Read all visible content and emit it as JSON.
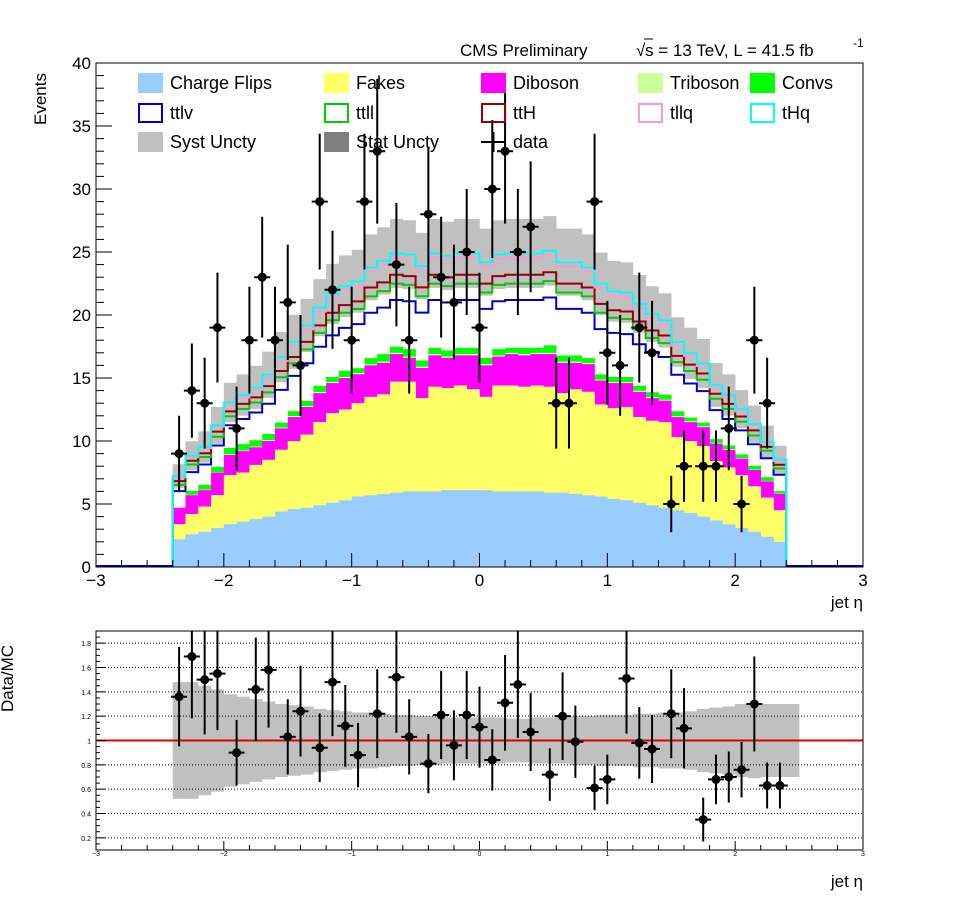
{
  "header": {
    "cms_label": "CMS Preliminary",
    "sqrt_symbol": "√",
    "energy_lumi": "s = 13 TeV, L = 41.5 fb",
    "lumi_exponent": "-1"
  },
  "colors": {
    "charge_flips": "#99ccff",
    "fakes": "#ffff66",
    "diboson": "#ff00ff",
    "triboson": "#ccff99",
    "convs": "#00ff00",
    "ttlv": "#0000cc",
    "ttll": "#00cc00",
    "ttH": "#990000",
    "tllq": "#ff99cc",
    "tHq": "#00ffff",
    "syst": "#c0c0c0",
    "stat": "#808080",
    "data": "#000000",
    "ratio_line": "#dd0000"
  },
  "legend": [
    {
      "label": "Charge Flips",
      "style": "fill",
      "color": "#99ccff"
    },
    {
      "label": "Fakes",
      "style": "fill",
      "color": "#ffff66"
    },
    {
      "label": "Diboson",
      "style": "fill",
      "color": "#ff00ff"
    },
    {
      "label": "Triboson",
      "style": "fill",
      "color": "#ccff99"
    },
    {
      "label": "Convs",
      "style": "fill",
      "color": "#00ff00"
    },
    {
      "label": "ttlv",
      "style": "box",
      "color": "#0000cc"
    },
    {
      "label": "ttll",
      "style": "box",
      "color": "#00cc00"
    },
    {
      "label": "ttH",
      "style": "box",
      "color": "#990000"
    },
    {
      "label": "tllq",
      "style": "box",
      "color": "#ff99cc"
    },
    {
      "label": "tHq",
      "style": "box",
      "color": "#00ffff"
    },
    {
      "label": "Syst Uncty",
      "style": "fill",
      "color": "#c0c0c0"
    },
    {
      "label": "Stat Uncty",
      "style": "fill",
      "color": "#808080"
    },
    {
      "label": "data",
      "style": "marker",
      "color": "#000000"
    }
  ],
  "chart_data": [
    {
      "type": "bar",
      "subtype": "stacked-histogram",
      "ylabel": "Events",
      "xlabel": "jet  η",
      "xlim": [
        -3,
        3
      ],
      "ylim": [
        0,
        40
      ],
      "xticks": [
        "−3",
        "−2",
        "−1",
        "0",
        "1",
        "2",
        "3"
      ],
      "yticks": [
        "0",
        "5",
        "10",
        "15",
        "20",
        "25",
        "30",
        "35",
        "40"
      ],
      "bin_edges": [
        -2.4,
        -2.3,
        -2.2,
        -2.1,
        -2.0,
        -1.9,
        -1.8,
        -1.7,
        -1.6,
        -1.5,
        -1.4,
        -1.3,
        -1.2,
        -1.1,
        -1.0,
        -0.9,
        -0.8,
        -0.7,
        -0.6,
        -0.5,
        -0.4,
        -0.3,
        -0.2,
        -0.1,
        0.0,
        0.1,
        0.2,
        0.3,
        0.4,
        0.5,
        0.6,
        0.7,
        0.8,
        0.9,
        1.0,
        1.1,
        1.2,
        1.3,
        1.4,
        1.5,
        1.6,
        1.7,
        1.8,
        1.9,
        2.0,
        2.1,
        2.2,
        2.3,
        2.4
      ],
      "series": [
        {
          "name": "Charge Flips",
          "values": [
            2.2,
            2.6,
            2.8,
            3.1,
            3.4,
            3.6,
            3.8,
            4.0,
            4.4,
            4.6,
            4.7,
            4.9,
            5.1,
            5.3,
            5.6,
            5.7,
            5.8,
            5.9,
            6.0,
            6.0,
            6.0,
            6.1,
            6.1,
            6.1,
            6.1,
            6.0,
            6.0,
            6.0,
            6.0,
            5.9,
            5.9,
            5.8,
            5.7,
            5.6,
            5.4,
            5.3,
            5.1,
            4.9,
            4.7,
            4.5,
            4.3,
            4.0,
            3.7,
            3.4,
            3.1,
            2.8,
            2.4,
            2.0
          ]
        },
        {
          "name": "Fakes",
          "values": [
            1.2,
            1.6,
            2.0,
            2.6,
            3.9,
            3.9,
            4.3,
            4.5,
            4.9,
            5.4,
            5.8,
            6.6,
            7.1,
            7.2,
            7.4,
            7.8,
            7.9,
            8.8,
            8.7,
            7.4,
            8.3,
            8.1,
            8.3,
            8.0,
            7.4,
            8.4,
            8.4,
            8.3,
            8.4,
            8.4,
            7.9,
            8.3,
            8.2,
            7.3,
            7.2,
            7.4,
            6.8,
            6.7,
            6.8,
            5.8,
            5.7,
            5.6,
            4.7,
            4.5,
            4.2,
            3.6,
            3.1,
            2.5
          ]
        },
        {
          "name": "Diboson",
          "values": [
            1.3,
            1.5,
            1.3,
            1.8,
            1.6,
            1.7,
            1.4,
            1.5,
            1.7,
            1.9,
            2.2,
            2.3,
            2.4,
            2.5,
            2.3,
            2.5,
            2.5,
            2.2,
            1.9,
            2.4,
            2.5,
            2.4,
            2.4,
            2.7,
            2.5,
            2.3,
            2.5,
            2.5,
            2.5,
            2.6,
            2.4,
            2.1,
            2.2,
            1.9,
            2.0,
            1.9,
            2.0,
            1.8,
            1.7,
            1.6,
            1.5,
            1.5,
            1.4,
            1.4,
            1.3,
            1.3,
            1.3,
            1.3
          ]
        },
        {
          "name": "Triboson",
          "values": [
            0.02,
            0.03,
            0.03,
            0.04,
            0.05,
            0.05,
            0.06,
            0.06,
            0.06,
            0.07,
            0.07,
            0.08,
            0.08,
            0.08,
            0.08,
            0.08,
            0.09,
            0.09,
            0.09,
            0.09,
            0.09,
            0.09,
            0.09,
            0.09,
            0.09,
            0.09,
            0.09,
            0.09,
            0.09,
            0.09,
            0.09,
            0.09,
            0.08,
            0.08,
            0.08,
            0.08,
            0.08,
            0.07,
            0.07,
            0.06,
            0.06,
            0.06,
            0.05,
            0.05,
            0.04,
            0.04,
            0.03,
            0.02
          ]
        },
        {
          "name": "Convs",
          "values": [
            0.0,
            0.3,
            0.4,
            0.4,
            0.5,
            0.5,
            0.5,
            0.5,
            0.4,
            0.4,
            0.4,
            0.5,
            0.4,
            0.5,
            0.4,
            0.5,
            0.6,
            0.5,
            0.6,
            0.5,
            0.5,
            0.5,
            0.5,
            0.5,
            0.5,
            0.5,
            0.4,
            0.5,
            0.4,
            0.6,
            0.5,
            0.5,
            0.4,
            0.4,
            0.4,
            0.4,
            0.4,
            0.4,
            0.4,
            0.4,
            0.3,
            0.3,
            0.3,
            0.3,
            0.3,
            0.3,
            0.3,
            0.2
          ]
        },
        {
          "name": "ttlv",
          "values": [
            1.3,
            1.5,
            1.6,
            1.7,
            1.8,
            2.0,
            2.2,
            2.4,
            2.6,
            2.8,
            3.0,
            3.1,
            3.3,
            3.4,
            3.5,
            3.6,
            3.7,
            3.7,
            3.8,
            3.8,
            3.8,
            3.8,
            3.8,
            3.8,
            3.9,
            3.8,
            3.8,
            3.8,
            3.8,
            3.8,
            3.7,
            3.7,
            3.6,
            3.6,
            3.5,
            3.4,
            3.3,
            3.2,
            3.0,
            2.9,
            2.7,
            2.5,
            2.3,
            2.1,
            1.9,
            1.7,
            1.5,
            1.3
          ]
        },
        {
          "name": "ttll",
          "values": [
            0.5,
            0.6,
            0.6,
            0.7,
            0.7,
            0.8,
            0.8,
            0.9,
            1.0,
            1.0,
            1.1,
            1.1,
            1.2,
            1.2,
            1.2,
            1.3,
            1.3,
            1.3,
            1.3,
            1.3,
            1.3,
            1.3,
            1.3,
            1.3,
            1.3,
            1.3,
            1.3,
            1.3,
            1.3,
            1.3,
            1.3,
            1.3,
            1.3,
            1.3,
            1.2,
            1.2,
            1.2,
            1.1,
            1.1,
            1.0,
            1.0,
            0.9,
            0.9,
            0.8,
            0.7,
            0.7,
            0.6,
            0.5
          ]
        },
        {
          "name": "ttH",
          "values": [
            0.3,
            0.3,
            0.3,
            0.4,
            0.4,
            0.4,
            0.4,
            0.5,
            0.5,
            0.5,
            0.6,
            0.6,
            0.6,
            0.6,
            0.6,
            0.7,
            0.7,
            0.7,
            0.7,
            0.7,
            0.7,
            0.7,
            0.7,
            0.7,
            0.7,
            0.7,
            0.7,
            0.7,
            0.7,
            0.7,
            0.7,
            0.7,
            0.7,
            0.7,
            0.6,
            0.6,
            0.6,
            0.6,
            0.6,
            0.5,
            0.5,
            0.5,
            0.4,
            0.4,
            0.4,
            0.4,
            0.3,
            0.3
          ]
        },
        {
          "name": "tllq",
          "values": [
            0.3,
            0.3,
            0.4,
            0.4,
            0.5,
            0.5,
            0.6,
            0.7,
            0.8,
            0.9,
            1.0,
            1.1,
            1.2,
            1.2,
            1.3,
            1.3,
            1.4,
            1.4,
            1.4,
            1.4,
            1.4,
            1.4,
            1.4,
            1.4,
            1.4,
            1.4,
            1.4,
            1.4,
            1.4,
            1.4,
            1.4,
            1.4,
            1.3,
            1.3,
            1.2,
            1.2,
            1.1,
            1.0,
            0.9,
            0.8,
            0.7,
            0.6,
            0.5,
            0.5,
            0.4,
            0.4,
            0.3,
            0.3
          ]
        },
        {
          "name": "tHq",
          "values": [
            0.1,
            0.1,
            0.1,
            0.1,
            0.2,
            0.2,
            0.2,
            0.2,
            0.3,
            0.3,
            0.3,
            0.3,
            0.3,
            0.3,
            0.3,
            0.3,
            0.3,
            0.3,
            0.3,
            0.3,
            0.3,
            0.3,
            0.3,
            0.3,
            0.3,
            0.3,
            0.3,
            0.3,
            0.3,
            0.3,
            0.3,
            0.3,
            0.3,
            0.3,
            0.3,
            0.3,
            0.3,
            0.3,
            0.3,
            0.3,
            0.2,
            0.2,
            0.2,
            0.2,
            0.2,
            0.1,
            0.1,
            0.1
          ]
        }
      ],
      "syst_band_rel": [
        0.13,
        0.13,
        0.13,
        0.13,
        0.12,
        0.12,
        0.12,
        0.12,
        0.12,
        0.12,
        0.11,
        0.11,
        0.11,
        0.11,
        0.11,
        0.11,
        0.11,
        0.11,
        0.11,
        0.11,
        0.11,
        0.11,
        0.11,
        0.11,
        0.11,
        0.11,
        0.11,
        0.11,
        0.11,
        0.11,
        0.11,
        0.11,
        0.11,
        0.11,
        0.11,
        0.11,
        0.11,
        0.11,
        0.11,
        0.11,
        0.12,
        0.12,
        0.12,
        0.12,
        0.12,
        0.13,
        0.13,
        0.13
      ],
      "data_points": {
        "name": "data",
        "x": [
          -2.35,
          -2.25,
          -2.15,
          -2.05,
          -1.9,
          -1.8,
          -1.7,
          -1.6,
          -1.5,
          -1.4,
          -1.25,
          -1.15,
          -1.0,
          -0.9,
          -0.8,
          -0.65,
          -0.55,
          -0.4,
          -0.3,
          -0.2,
          -0.1,
          0.0,
          0.1,
          0.2,
          0.3,
          0.4,
          0.6,
          0.7,
          0.9,
          1.0,
          1.1,
          1.25,
          1.35,
          1.5,
          1.6,
          1.75,
          1.85,
          1.95,
          2.05,
          2.15,
          2.25
        ],
        "y": [
          9,
          14,
          13,
          19,
          11,
          18,
          23,
          18,
          21,
          16,
          29,
          22,
          18,
          29,
          33,
          24,
          18,
          28,
          23,
          21,
          25,
          19,
          30,
          33,
          25,
          27,
          13,
          13,
          29,
          17,
          16,
          19,
          17,
          5,
          8,
          8,
          8,
          11,
          5,
          18,
          13
        ]
      }
    },
    {
      "type": "scatter",
      "subtype": "ratio",
      "ylabel": "Data/MC",
      "xlabel": "jet  η",
      "xlim": [
        -3,
        3
      ],
      "ylim": [
        0.1,
        1.9
      ],
      "xticks": [
        "−3",
        "−2",
        "−1",
        "0",
        "1",
        "2",
        "3"
      ],
      "yticks": [
        "0.2",
        "0.4",
        "0.6",
        "0.8",
        "1",
        "1.2",
        "1.4",
        "1.6",
        "1.8"
      ],
      "reference_line": 1,
      "band_edges": [
        -2.4,
        -2.3,
        -2.2,
        -2.1,
        -2.0,
        -1.9,
        -1.8,
        -1.7,
        -1.6,
        -1.5,
        -1.4,
        -1.3,
        -1.2,
        -1.1,
        -1.0,
        -0.9,
        -0.8,
        -0.7,
        -0.6,
        -0.5,
        -0.4,
        -0.3,
        -0.2,
        -0.1,
        0.0,
        0.1,
        0.2,
        0.3,
        0.4,
        0.5,
        0.6,
        0.7,
        0.8,
        0.9,
        1.0,
        1.1,
        1.2,
        1.3,
        1.4,
        1.5,
        1.6,
        1.7,
        1.8,
        1.9,
        2.0,
        2.1,
        2.2,
        2.3,
        2.4,
        2.5
      ],
      "band_low": [
        0.52,
        0.52,
        0.55,
        0.58,
        0.62,
        0.64,
        0.66,
        0.68,
        0.7,
        0.71,
        0.72,
        0.74,
        0.75,
        0.76,
        0.77,
        0.77,
        0.78,
        0.79,
        0.79,
        0.8,
        0.8,
        0.81,
        0.81,
        0.81,
        0.81,
        0.81,
        0.82,
        0.82,
        0.81,
        0.81,
        0.81,
        0.8,
        0.8,
        0.79,
        0.79,
        0.79,
        0.78,
        0.78,
        0.77,
        0.77,
        0.76,
        0.74,
        0.73,
        0.72,
        0.7,
        0.69,
        0.7,
        0.7,
        0.7
      ],
      "band_high": [
        1.48,
        1.48,
        1.45,
        1.42,
        1.38,
        1.36,
        1.34,
        1.32,
        1.3,
        1.29,
        1.28,
        1.26,
        1.25,
        1.24,
        1.23,
        1.23,
        1.22,
        1.21,
        1.21,
        1.2,
        1.2,
        1.19,
        1.19,
        1.19,
        1.19,
        1.19,
        1.18,
        1.18,
        1.19,
        1.19,
        1.19,
        1.2,
        1.2,
        1.21,
        1.21,
        1.21,
        1.22,
        1.22,
        1.23,
        1.23,
        1.24,
        1.26,
        1.27,
        1.28,
        1.3,
        1.31,
        1.3,
        1.3,
        1.3
      ],
      "points": {
        "x": [
          -2.35,
          -2.25,
          -2.15,
          -2.05,
          -1.9,
          -1.75,
          -1.65,
          -1.5,
          -1.4,
          -1.25,
          -1.15,
          -1.05,
          -0.95,
          -0.8,
          -0.65,
          -0.55,
          -0.4,
          -0.3,
          -0.2,
          -0.1,
          0.0,
          0.1,
          0.2,
          0.3,
          0.4,
          0.55,
          0.65,
          0.75,
          0.9,
          1.0,
          1.15,
          1.25,
          1.35,
          1.5,
          1.6,
          1.75,
          1.85,
          1.95,
          2.05,
          2.15,
          2.25,
          2.35
        ],
        "y": [
          1.36,
          1.69,
          1.5,
          1.55,
          0.9,
          1.42,
          1.58,
          1.03,
          1.24,
          0.94,
          1.48,
          1.12,
          0.88,
          1.22,
          1.52,
          1.03,
          0.81,
          1.21,
          0.96,
          1.21,
          1.11,
          0.84,
          1.31,
          1.46,
          1.07,
          0.72,
          1.2,
          0.99,
          0.61,
          0.68,
          1.51,
          0.98,
          0.93,
          1.22,
          1.1,
          0.35,
          0.68,
          0.7,
          0.76,
          1.3,
          0.63,
          0.63
        ]
      }
    }
  ]
}
